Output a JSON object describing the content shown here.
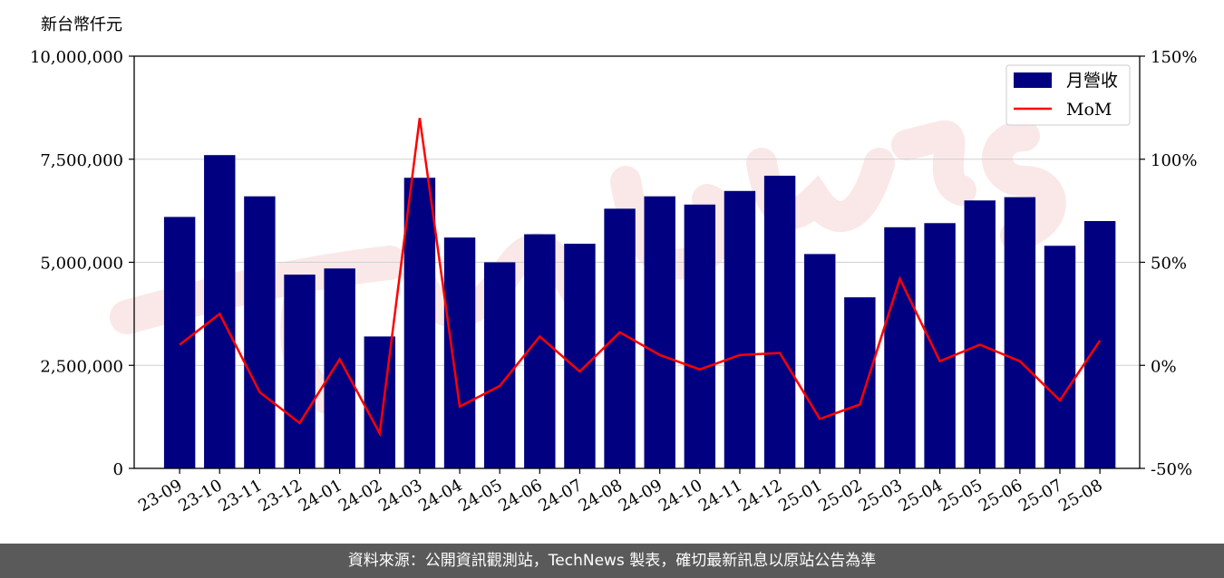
{
  "y_unit_label": "新台幣仟元",
  "footer_text": "資料來源：公開資訊觀測站，TechNews 製表，確切最新訊息以原站公告為準",
  "colors": {
    "bar": "#000080",
    "line": "#ff0000",
    "watermark": "#f6d6d6",
    "footer_bg": "#5a5a5a"
  },
  "chart_data": {
    "type": "bar",
    "categories": [
      "23-09",
      "23-10",
      "23-11",
      "23-12",
      "24-01",
      "24-02",
      "24-03",
      "24-04",
      "24-05",
      "24-06",
      "24-07",
      "24-08",
      "24-09",
      "24-10",
      "24-11",
      "24-12",
      "25-01",
      "25-02",
      "25-03",
      "25-04",
      "25-05",
      "25-06",
      "25-07",
      "25-08"
    ],
    "series": [
      {
        "name": "月營收",
        "axis": "left",
        "type": "bar",
        "values": [
          6100000,
          7600000,
          6600000,
          4700000,
          4850000,
          3200000,
          7050000,
          5600000,
          5000000,
          5680000,
          5450000,
          6300000,
          6600000,
          6400000,
          6730000,
          7100000,
          5200000,
          4150000,
          5850000,
          5950000,
          6500000,
          6580000,
          5400000,
          6000000
        ]
      },
      {
        "name": "MoM",
        "axis": "right",
        "type": "line",
        "values": [
          10,
          25,
          -13,
          -28,
          3,
          -33,
          120,
          -20,
          -10,
          14,
          -3,
          16,
          5,
          -2,
          5,
          6,
          -26,
          -19,
          42,
          2,
          10,
          2,
          -17,
          12
        ]
      }
    ],
    "left_axis": {
      "ylim": [
        0,
        10000000
      ],
      "ticks": [
        "0",
        "2,500,000",
        "5,000,000",
        "7,500,000",
        "10,000,000"
      ],
      "tick_values": [
        0,
        2500000,
        5000000,
        7500000,
        10000000
      ]
    },
    "right_axis": {
      "ylim": [
        -50,
        150
      ],
      "ticks": [
        "-50%",
        "0%",
        "50%",
        "100%",
        "150%"
      ],
      "tick_values": [
        -50,
        0,
        50,
        100,
        150
      ]
    },
    "grid": true,
    "legend_placement": "top-right"
  }
}
